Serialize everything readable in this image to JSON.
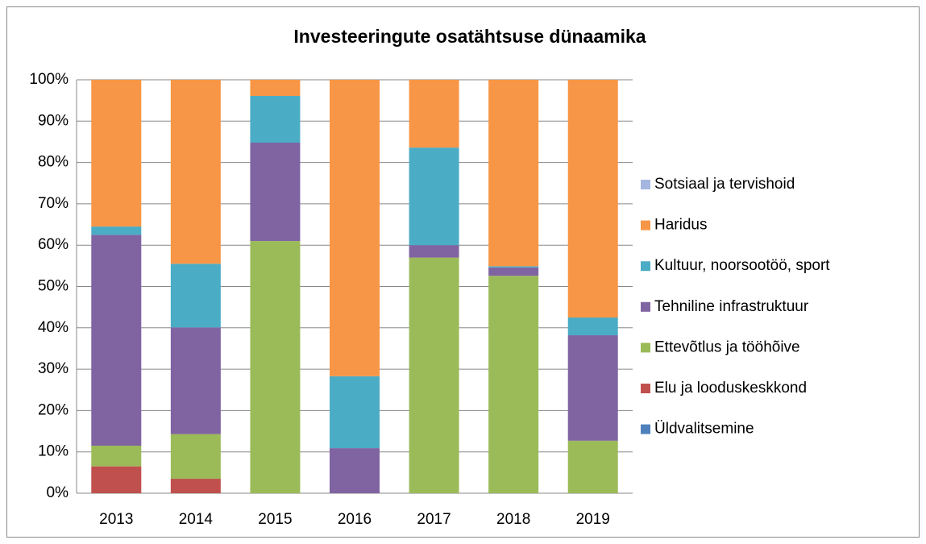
{
  "chart_data": {
    "type": "stacked_bar",
    "title": "Investeeringute osatähtsuse dünaamika",
    "categories": [
      "2013",
      "2014",
      "2015",
      "2016",
      "2017",
      "2018",
      "2019"
    ],
    "series": [
      {
        "name": "Üldvalitsemine",
        "color": "#4f81bd",
        "values": [
          0,
          0,
          0,
          0,
          0,
          0,
          0
        ]
      },
      {
        "name": "Elu ja looduskeskkond",
        "color": "#c0504d",
        "values": [
          6.5,
          3.5,
          0,
          0,
          0,
          0,
          0
        ]
      },
      {
        "name": "Ettevõtlus ja tööhõive",
        "color": "#9bbb59",
        "values": [
          5,
          10.8,
          61,
          0,
          57,
          52.6,
          12.7
        ]
      },
      {
        "name": "Tehniline infrastruktuur",
        "color": "#8064a2",
        "values": [
          51,
          25.8,
          23.8,
          10.9,
          3,
          2,
          25.5
        ]
      },
      {
        "name": "Kultuur, noorsootöö, sport",
        "color": "#4bacc6",
        "values": [
          2,
          15.4,
          11.3,
          17.4,
          23.6,
          0.3,
          4.3
        ]
      },
      {
        "name": "Haridus",
        "color": "#f79646",
        "values": [
          35.5,
          44.5,
          3.9,
          71.7,
          16.4,
          45.1,
          57.5
        ]
      },
      {
        "name": "Sotsiaal ja tervishoid",
        "color": "#a5b6e0",
        "values": [
          0,
          0,
          0,
          0,
          0,
          0,
          0
        ]
      }
    ],
    "ylim": [
      0,
      100
    ],
    "yticks": [
      {
        "value": 0,
        "label": "0%"
      },
      {
        "value": 10,
        "label": "10%"
      },
      {
        "value": 20,
        "label": "20%"
      },
      {
        "value": 30,
        "label": "30%"
      },
      {
        "value": 40,
        "label": "40%"
      },
      {
        "value": 50,
        "label": "50%"
      },
      {
        "value": 60,
        "label": "60%"
      },
      {
        "value": 70,
        "label": "70%"
      },
      {
        "value": 80,
        "label": "80%"
      },
      {
        "value": 90,
        "label": "90%"
      },
      {
        "value": 100,
        "label": "100%"
      }
    ],
    "grid": true,
    "legend": "right"
  }
}
